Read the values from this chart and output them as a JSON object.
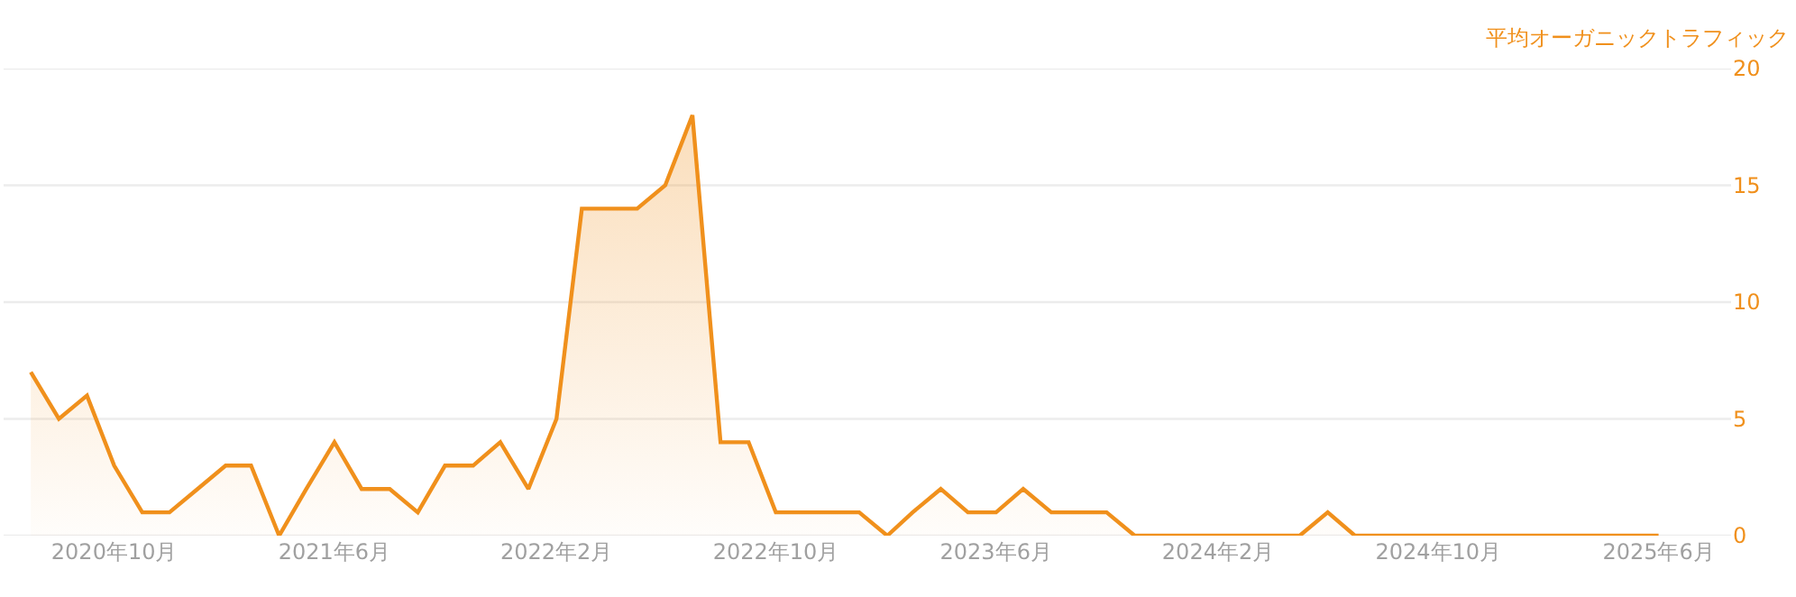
{
  "chart_data": {
    "type": "area",
    "ylabel": "平均オーガニックトラフィック",
    "x": [
      "2020-07",
      "2020-08",
      "2020-09",
      "2020-10",
      "2020-11",
      "2020-12",
      "2021-01",
      "2021-02",
      "2021-03",
      "2021-04",
      "2021-05",
      "2021-06",
      "2021-07",
      "2021-08",
      "2021-09",
      "2021-10",
      "2021-11",
      "2021-12",
      "2022-01",
      "2022-02",
      "2022-03",
      "2022-04",
      "2022-05",
      "2022-06",
      "2022-07",
      "2022-08",
      "2022-09",
      "2022-10",
      "2022-11",
      "2022-12",
      "2023-01",
      "2023-02",
      "2023-03",
      "2023-04",
      "2023-05",
      "2023-06",
      "2023-07",
      "2023-08",
      "2023-09",
      "2023-10",
      "2023-11",
      "2023-12",
      "2024-01",
      "2024-02",
      "2024-03",
      "2024-04",
      "2024-05",
      "2024-06",
      "2024-07",
      "2024-08",
      "2024-09",
      "2024-10",
      "2024-11",
      "2024-12",
      "2025-01",
      "2025-02",
      "2025-03",
      "2025-04",
      "2025-05",
      "2025-06"
    ],
    "series": [
      {
        "color": "#f0901c",
        "values": [
          7,
          5,
          6,
          3,
          1,
          1,
          2,
          3,
          3,
          0,
          2,
          4,
          2,
          2,
          1,
          3,
          3,
          4,
          2,
          5,
          14,
          14,
          14,
          15,
          18,
          4,
          4,
          1,
          1,
          1,
          1,
          0,
          1,
          2,
          1,
          1,
          2,
          1,
          1,
          1,
          0,
          0,
          0,
          0,
          0,
          0,
          0,
          1,
          0,
          0,
          0,
          0,
          0,
          0,
          0,
          0,
          0,
          0,
          0,
          0
        ]
      }
    ],
    "xlim": [
      "2020-06-01",
      "2025-08-20"
    ],
    "xticks": [
      {
        "value": "2020-10",
        "label": "2020年10月"
      },
      {
        "value": "2021-06",
        "label": "2021年6月"
      },
      {
        "value": "2022-02",
        "label": "2022年2月"
      },
      {
        "value": "2022-10",
        "label": "2022年10月"
      },
      {
        "value": "2023-06",
        "label": "2023年6月"
      },
      {
        "value": "2024-02",
        "label": "2024年2月"
      },
      {
        "value": "2024-10",
        "label": "2024年10月"
      },
      {
        "value": "2025-06",
        "label": "2025年6月"
      }
    ],
    "ylim": [
      0,
      20
    ],
    "yticks": [
      0,
      5,
      10,
      15,
      20
    ],
    "grid": "y",
    "marker": "none",
    "line_style": "solid"
  }
}
